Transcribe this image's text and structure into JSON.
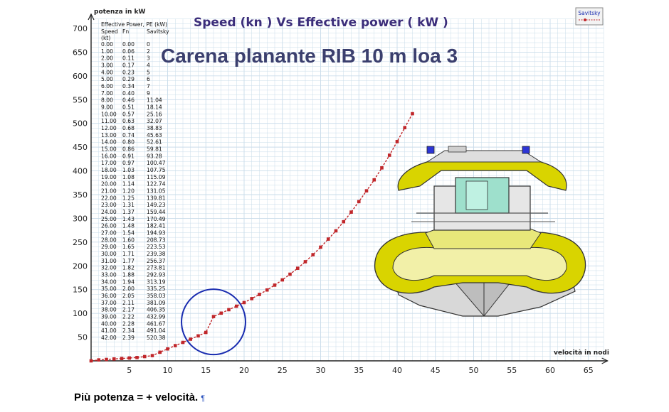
{
  "chart_data": {
    "type": "line",
    "title": "Speed  (kn )  Vs  Effective power ( kW )",
    "subtitle": "Carena planante  RIB 10 m loa   3",
    "ylabel": "potenza in kW",
    "xlabel": "velocità in nodi",
    "xlim": [
      0,
      65
    ],
    "ylim": [
      0,
      700
    ],
    "xticks": [
      5,
      10,
      15,
      20,
      25,
      30,
      35,
      40,
      45,
      50,
      55,
      60,
      65
    ],
    "yticks": [
      50,
      100,
      150,
      200,
      250,
      300,
      350,
      400,
      450,
      500,
      550,
      600,
      650,
      700
    ],
    "grid": true,
    "series": [
      {
        "color": "#c0262a",
        "x": [
          0,
          1,
          2,
          3,
          4,
          5,
          6,
          7,
          8,
          9,
          10,
          11,
          12,
          13,
          14,
          15,
          16,
          17,
          18,
          19,
          20,
          21,
          22,
          23,
          24,
          25,
          26,
          27,
          28,
          29,
          30,
          31,
          32,
          33,
          34,
          35,
          36,
          37,
          38,
          39,
          40,
          41,
          42
        ],
        "y": [
          0,
          2,
          3,
          4,
          5,
          6,
          7,
          9,
          11.04,
          18.14,
          25.16,
          32.07,
          38.83,
          45.63,
          52.61,
          59.81,
          93.28,
          100.47,
          107.75,
          115.09,
          122.74,
          131.05,
          139.81,
          149.23,
          159.44,
          170.49,
          182.41,
          194.93,
          208.73,
          223.53,
          239.38,
          256.37,
          273.81,
          292.93,
          313.19,
          335.25,
          358.03,
          381.09,
          406.35,
          432.99,
          461.67,
          491.04,
          520.38
        ]
      }
    ],
    "table": {
      "header_top": "Effective Power, PE (kW)",
      "columns": [
        "Speed",
        "Fn",
        "Savitsky"
      ],
      "unit_row": "(kt)",
      "rows": [
        [
          "0.00",
          "0.00",
          "0"
        ],
        [
          "1.00",
          "0.06",
          "2"
        ],
        [
          "2.00",
          "0.11",
          "3"
        ],
        [
          "3.00",
          "0.17",
          "4"
        ],
        [
          "4.00",
          "0.23",
          "5"
        ],
        [
          "5.00",
          "0.29",
          "6"
        ],
        [
          "6.00",
          "0.34",
          "7"
        ],
        [
          "7.00",
          "0.40",
          "9"
        ],
        [
          "8.00",
          "0.46",
          "11.04"
        ],
        [
          "9.00",
          "0.51",
          "18.14"
        ],
        [
          "10.00",
          "0.57",
          "25.16"
        ],
        [
          "11.00",
          "0.63",
          "32.07"
        ],
        [
          "12.00",
          "0.68",
          "38.83"
        ],
        [
          "13.00",
          "0.74",
          "45.63"
        ],
        [
          "14.00",
          "0.80",
          "52.61"
        ],
        [
          "15.00",
          "0.86",
          "59.81"
        ],
        [
          "16.00",
          "0.91",
          "93.28"
        ],
        [
          "17.00",
          "0.97",
          "100.47"
        ],
        [
          "18.00",
          "1.03",
          "107.75"
        ],
        [
          "19.00",
          "1.08",
          "115.09"
        ],
        [
          "20.00",
          "1.14",
          "122.74"
        ],
        [
          "21.00",
          "1.20",
          "131.05"
        ],
        [
          "22.00",
          "1.25",
          "139.81"
        ],
        [
          "23.00",
          "1.31",
          "149.23"
        ],
        [
          "24.00",
          "1.37",
          "159.44"
        ],
        [
          "25.00",
          "1.43",
          "170.49"
        ],
        [
          "26.00",
          "1.48",
          "182.41"
        ],
        [
          "27.00",
          "1.54",
          "194.93"
        ],
        [
          "28.00",
          "1.60",
          "208.73"
        ],
        [
          "29.00",
          "1.65",
          "223.53"
        ],
        [
          "30.00",
          "1.71",
          "239.38"
        ],
        [
          "31.00",
          "1.77",
          "256.37"
        ],
        [
          "32.00",
          "1.82",
          "273.81"
        ],
        [
          "33.00",
          "1.88",
          "292.93"
        ],
        [
          "34.00",
          "1.94",
          "313.19"
        ],
        [
          "35.00",
          "2.00",
          "335.25"
        ],
        [
          "36.00",
          "2.05",
          "358.03"
        ],
        [
          "37.00",
          "2.11",
          "381.09"
        ],
        [
          "38.00",
          "2.17",
          "406.35"
        ],
        [
          "39.00",
          "2.22",
          "432.99"
        ],
        [
          "40.00",
          "2.28",
          "461.67"
        ],
        [
          "41.00",
          "2.34",
          "491.04"
        ],
        [
          "42.00",
          "2.39",
          "520.38"
        ]
      ]
    },
    "annotation": {
      "type": "circle",
      "center_x": 16,
      "center_y": 82,
      "color": "#1a2db0"
    },
    "badge_label": "Savitsky"
  },
  "caption": {
    "text": "Più potenza = + velocità.",
    "mark": "¶"
  },
  "colors": {
    "series": "#c0262a",
    "grid": "#c9dcea",
    "title": "#3b2d7a",
    "circle": "#1a2db0",
    "boat_tubes": "#d9d400"
  }
}
